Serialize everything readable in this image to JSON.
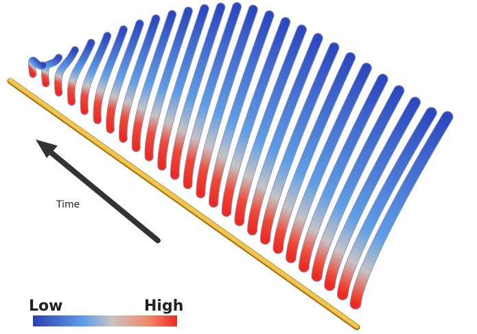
{
  "labels": {
    "time": "Time",
    "low": "Low",
    "high": "High"
  }
}
